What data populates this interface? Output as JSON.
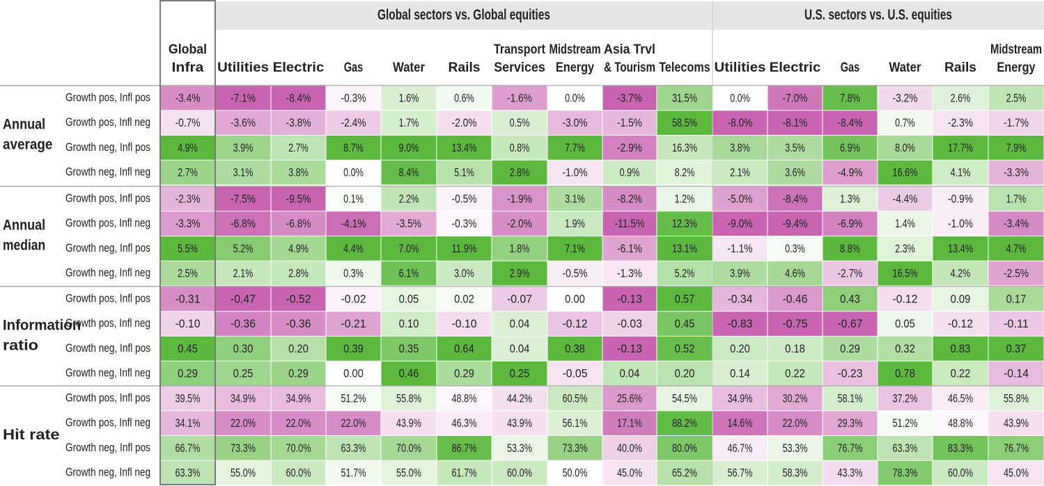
{
  "chart_data": {
    "type": "heatmap",
    "groups": [
      {
        "label": "",
        "columns": [
          "Global Infra"
        ]
      },
      {
        "label": "Global sectors vs. Global equities",
        "columns": [
          "Utilities",
          "Electric",
          "Gas",
          "Water",
          "Rails",
          "Transport Services",
          "Midstream Energy",
          "Asia Trvl & Tourism",
          "Telecoms"
        ]
      },
      {
        "label": "U.S. sectors vs. U.S. equities",
        "columns": [
          "Utilities",
          "Electric",
          "Gas",
          "Water",
          "Rails",
          "Midstream Energy"
        ]
      }
    ],
    "column_headers": [
      [
        "Global",
        "Infra"
      ],
      [
        "Utilities"
      ],
      [
        "Electric"
      ],
      [
        "Gas"
      ],
      [
        "Water"
      ],
      [
        "Rails"
      ],
      [
        "Transport",
        "Services"
      ],
      [
        "Midstream",
        "Energy"
      ],
      [
        "Asia Trvl",
        "& Tourism"
      ],
      [
        "Telecoms"
      ],
      [
        "Utilities"
      ],
      [
        "Electric"
      ],
      [
        "Gas"
      ],
      [
        "Water"
      ],
      [
        "Rails"
      ],
      [
        "Midstream",
        "Energy"
      ]
    ],
    "row_labels": [
      "Growth pos, Infl pos",
      "Growth pos, Infl neg",
      "Growth neg, Infl pos",
      "Growth neg, Infl neg"
    ],
    "sections": [
      {
        "label": [
          "Annual",
          "average"
        ],
        "values": [
          [
            "-3.4%",
            "-7.1%",
            "-8.4%",
            "-0.3%",
            "1.6%",
            "0.6%",
            "-1.6%",
            "0.0%",
            "-3.7%",
            "31.5%",
            "0.0%",
            "-7.0%",
            "7.8%",
            "-3.2%",
            "2.6%",
            "2.5%"
          ],
          [
            "-0.7%",
            "-3.6%",
            "-3.8%",
            "-2.4%",
            "1.7%",
            "-2.0%",
            "0.5%",
            "-3.0%",
            "-1.5%",
            "58.5%",
            "-8.0%",
            "-8.1%",
            "-8.4%",
            "0.7%",
            "-2.3%",
            "-1.7%"
          ],
          [
            "4.9%",
            "3.9%",
            "2.7%",
            "8.7%",
            "9.0%",
            "13.4%",
            "0.8%",
            "7.7%",
            "-2.9%",
            "16.3%",
            "3.8%",
            "3.5%",
            "6.9%",
            "8.0%",
            "17.7%",
            "7.9%"
          ],
          [
            "2.7%",
            "3.1%",
            "3.8%",
            "0.0%",
            "8.4%",
            "5.1%",
            "2.8%",
            "-1.0%",
            "0.9%",
            "8.2%",
            "2.1%",
            "3.6%",
            "-4.9%",
            "16.6%",
            "4.1%",
            "-3.3%"
          ]
        ]
      },
      {
        "label": [
          "Annual",
          "median"
        ],
        "values": [
          [
            "-2.3%",
            "-7.5%",
            "-9.5%",
            "0.1%",
            "2.2%",
            "-0.5%",
            "-1.9%",
            "3.1%",
            "-8.2%",
            "1.2%",
            "-5.0%",
            "-8.4%",
            "1.3%",
            "-4.4%",
            "-0.9%",
            "1.7%"
          ],
          [
            "-3.3%",
            "-6.8%",
            "-6.8%",
            "-4.1%",
            "-3.5%",
            "-0.3%",
            "-2.0%",
            "1.9%",
            "-11.5%",
            "12.3%",
            "-9.0%",
            "-9.4%",
            "-6.9%",
            "1.4%",
            "-1.0%",
            "-3.4%"
          ],
          [
            "5.5%",
            "5.2%",
            "4.9%",
            "4.4%",
            "7.0%",
            "11.9%",
            "1.8%",
            "7.1%",
            "-6.1%",
            "13.1%",
            "-1.1%",
            "0.3%",
            "8.8%",
            "2.3%",
            "13.4%",
            "4.7%"
          ],
          [
            "2.5%",
            "2.1%",
            "2.8%",
            "0.3%",
            "6.1%",
            "3.0%",
            "2.9%",
            "-0.5%",
            "-1.3%",
            "5.2%",
            "3.9%",
            "4.6%",
            "-2.7%",
            "16.5%",
            "4.2%",
            "-2.5%"
          ]
        ]
      },
      {
        "label": [
          "Information",
          "ratio"
        ],
        "values": [
          [
            "-0.31",
            "-0.47",
            "-0.52",
            "-0.02",
            "0.05",
            "0.02",
            "-0.07",
            "0.00",
            "-0.13",
            "0.57",
            "-0.34",
            "-0.46",
            "0.43",
            "-0.12",
            "0.09",
            "0.17"
          ],
          [
            "-0.10",
            "-0.36",
            "-0.36",
            "-0.21",
            "0.10",
            "-0.10",
            "0.04",
            "-0.12",
            "-0.03",
            "0.45",
            "-0.83",
            "-0.75",
            "-0.67",
            "0.05",
            "-0.12",
            "-0.11"
          ],
          [
            "0.45",
            "0.30",
            "0.20",
            "0.39",
            "0.35",
            "0.64",
            "0.04",
            "0.38",
            "-0.13",
            "0.52",
            "0.20",
            "0.18",
            "0.29",
            "0.32",
            "0.83",
            "0.37"
          ],
          [
            "0.29",
            "0.25",
            "0.29",
            "0.00",
            "0.46",
            "0.29",
            "0.25",
            "-0.05",
            "0.04",
            "0.20",
            "0.14",
            "0.22",
            "-0.23",
            "0.78",
            "0.22",
            "-0.14"
          ]
        ]
      },
      {
        "label": [
          "Hit rate"
        ],
        "values": [
          [
            "39.5%",
            "34.9%",
            "34.9%",
            "51.2%",
            "55.8%",
            "48.8%",
            "44.2%",
            "60.5%",
            "25.6%",
            "54.5%",
            "34.9%",
            "30.2%",
            "58.1%",
            "37.2%",
            "46.5%",
            "55.8%"
          ],
          [
            "34.1%",
            "22.0%",
            "22.0%",
            "22.0%",
            "43.9%",
            "46.3%",
            "43.9%",
            "56.1%",
            "17.1%",
            "88.2%",
            "14.6%",
            "22.0%",
            "29.3%",
            "51.2%",
            "48.8%",
            "43.9%"
          ],
          [
            "66.7%",
            "73.3%",
            "70.0%",
            "63.3%",
            "70.0%",
            "86.7%",
            "53.3%",
            "73.3%",
            "40.0%",
            "80.0%",
            "46.7%",
            "53.3%",
            "76.7%",
            "63.3%",
            "83.3%",
            "76.7%"
          ],
          [
            "63.3%",
            "55.0%",
            "60.0%",
            "51.7%",
            "55.0%",
            "61.7%",
            "60.0%",
            "50.0%",
            "45.0%",
            "65.2%",
            "56.7%",
            "58.3%",
            "43.3%",
            "78.3%",
            "60.0%",
            "45.0%"
          ]
        ]
      }
    ],
    "colors": {
      "green_max": "#5db840",
      "neutral": "#ffffff",
      "pink_max": "#c765b0"
    },
    "highlighted_column": "Global Infra"
  }
}
